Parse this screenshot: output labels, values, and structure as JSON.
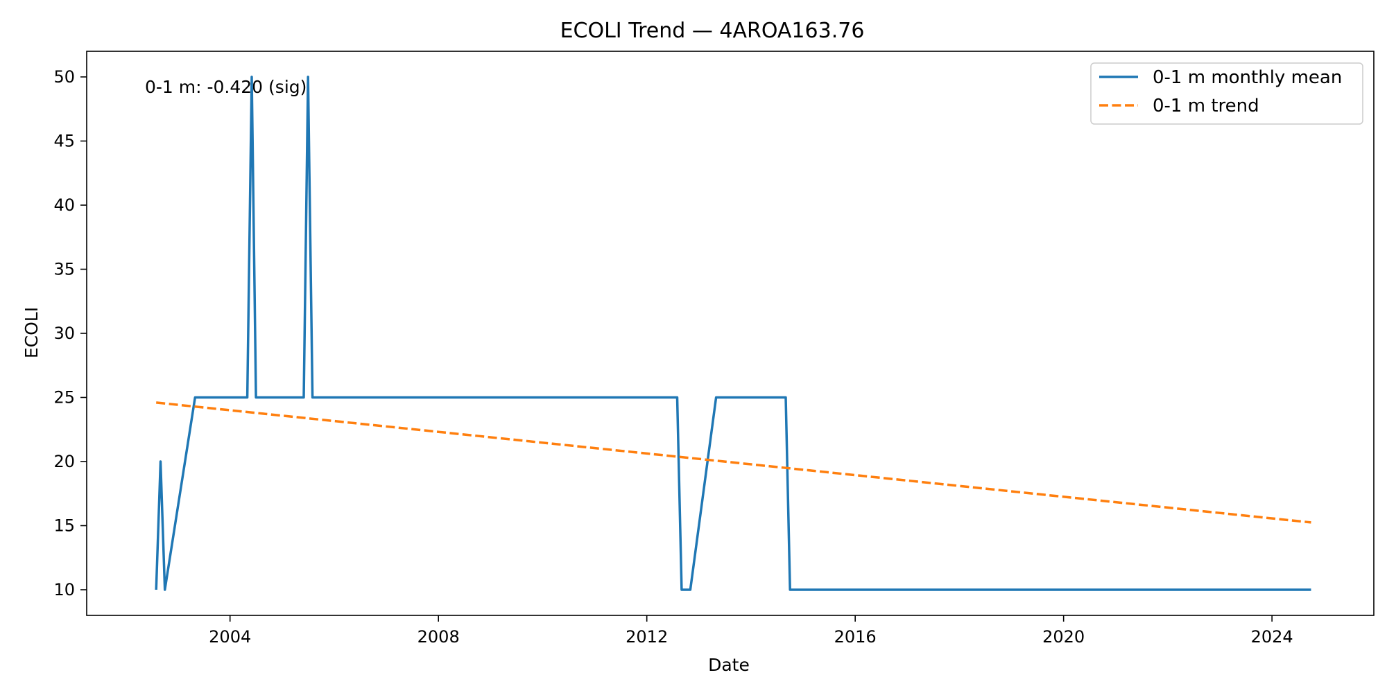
{
  "chart_data": {
    "type": "line",
    "title": "ECOLI Trend — 4AROA163.76",
    "xlabel": "Date",
    "ylabel": "ECOLI",
    "x_axis_type": "date",
    "xlim": [
      "2001-04-01",
      "2025-12-15"
    ],
    "ylim": [
      8,
      52
    ],
    "x_ticks": [
      "2004",
      "2008",
      "2012",
      "2016",
      "2020",
      "2024"
    ],
    "y_ticks": [
      10,
      15,
      20,
      25,
      30,
      35,
      40,
      45,
      50
    ],
    "grid": false,
    "legend_position": "top-right",
    "annotation": "0-1 m: -0.420 (sig)",
    "series": [
      {
        "name": "0-1 m monthly mean",
        "style": "solid",
        "color": "#1f77b4",
        "points": [
          {
            "x": "2002-08-01",
            "y": 10
          },
          {
            "x": "2002-09-01",
            "y": 20
          },
          {
            "x": "2002-10-01",
            "y": 10
          },
          {
            "x": "2003-05-01",
            "y": 25
          },
          {
            "x": "2004-05-01",
            "y": 25
          },
          {
            "x": "2004-06-01",
            "y": 50
          },
          {
            "x": "2004-07-01",
            "y": 25
          },
          {
            "x": "2005-06-01",
            "y": 25
          },
          {
            "x": "2005-07-01",
            "y": 50
          },
          {
            "x": "2005-08-01",
            "y": 25
          },
          {
            "x": "2012-08-01",
            "y": 25
          },
          {
            "x": "2012-09-01",
            "y": 10
          },
          {
            "x": "2012-11-01",
            "y": 10
          },
          {
            "x": "2013-05-01",
            "y": 25
          },
          {
            "x": "2014-09-01",
            "y": 25
          },
          {
            "x": "2014-10-01",
            "y": 10
          },
          {
            "x": "2024-10-01",
            "y": 10
          }
        ]
      },
      {
        "name": "0-1 m trend",
        "style": "dashed",
        "color": "#ff7f0e",
        "points": [
          {
            "x": "2002-08-01",
            "y": 24.6
          },
          {
            "x": "2024-10-01",
            "y": 15.25
          }
        ]
      }
    ]
  }
}
